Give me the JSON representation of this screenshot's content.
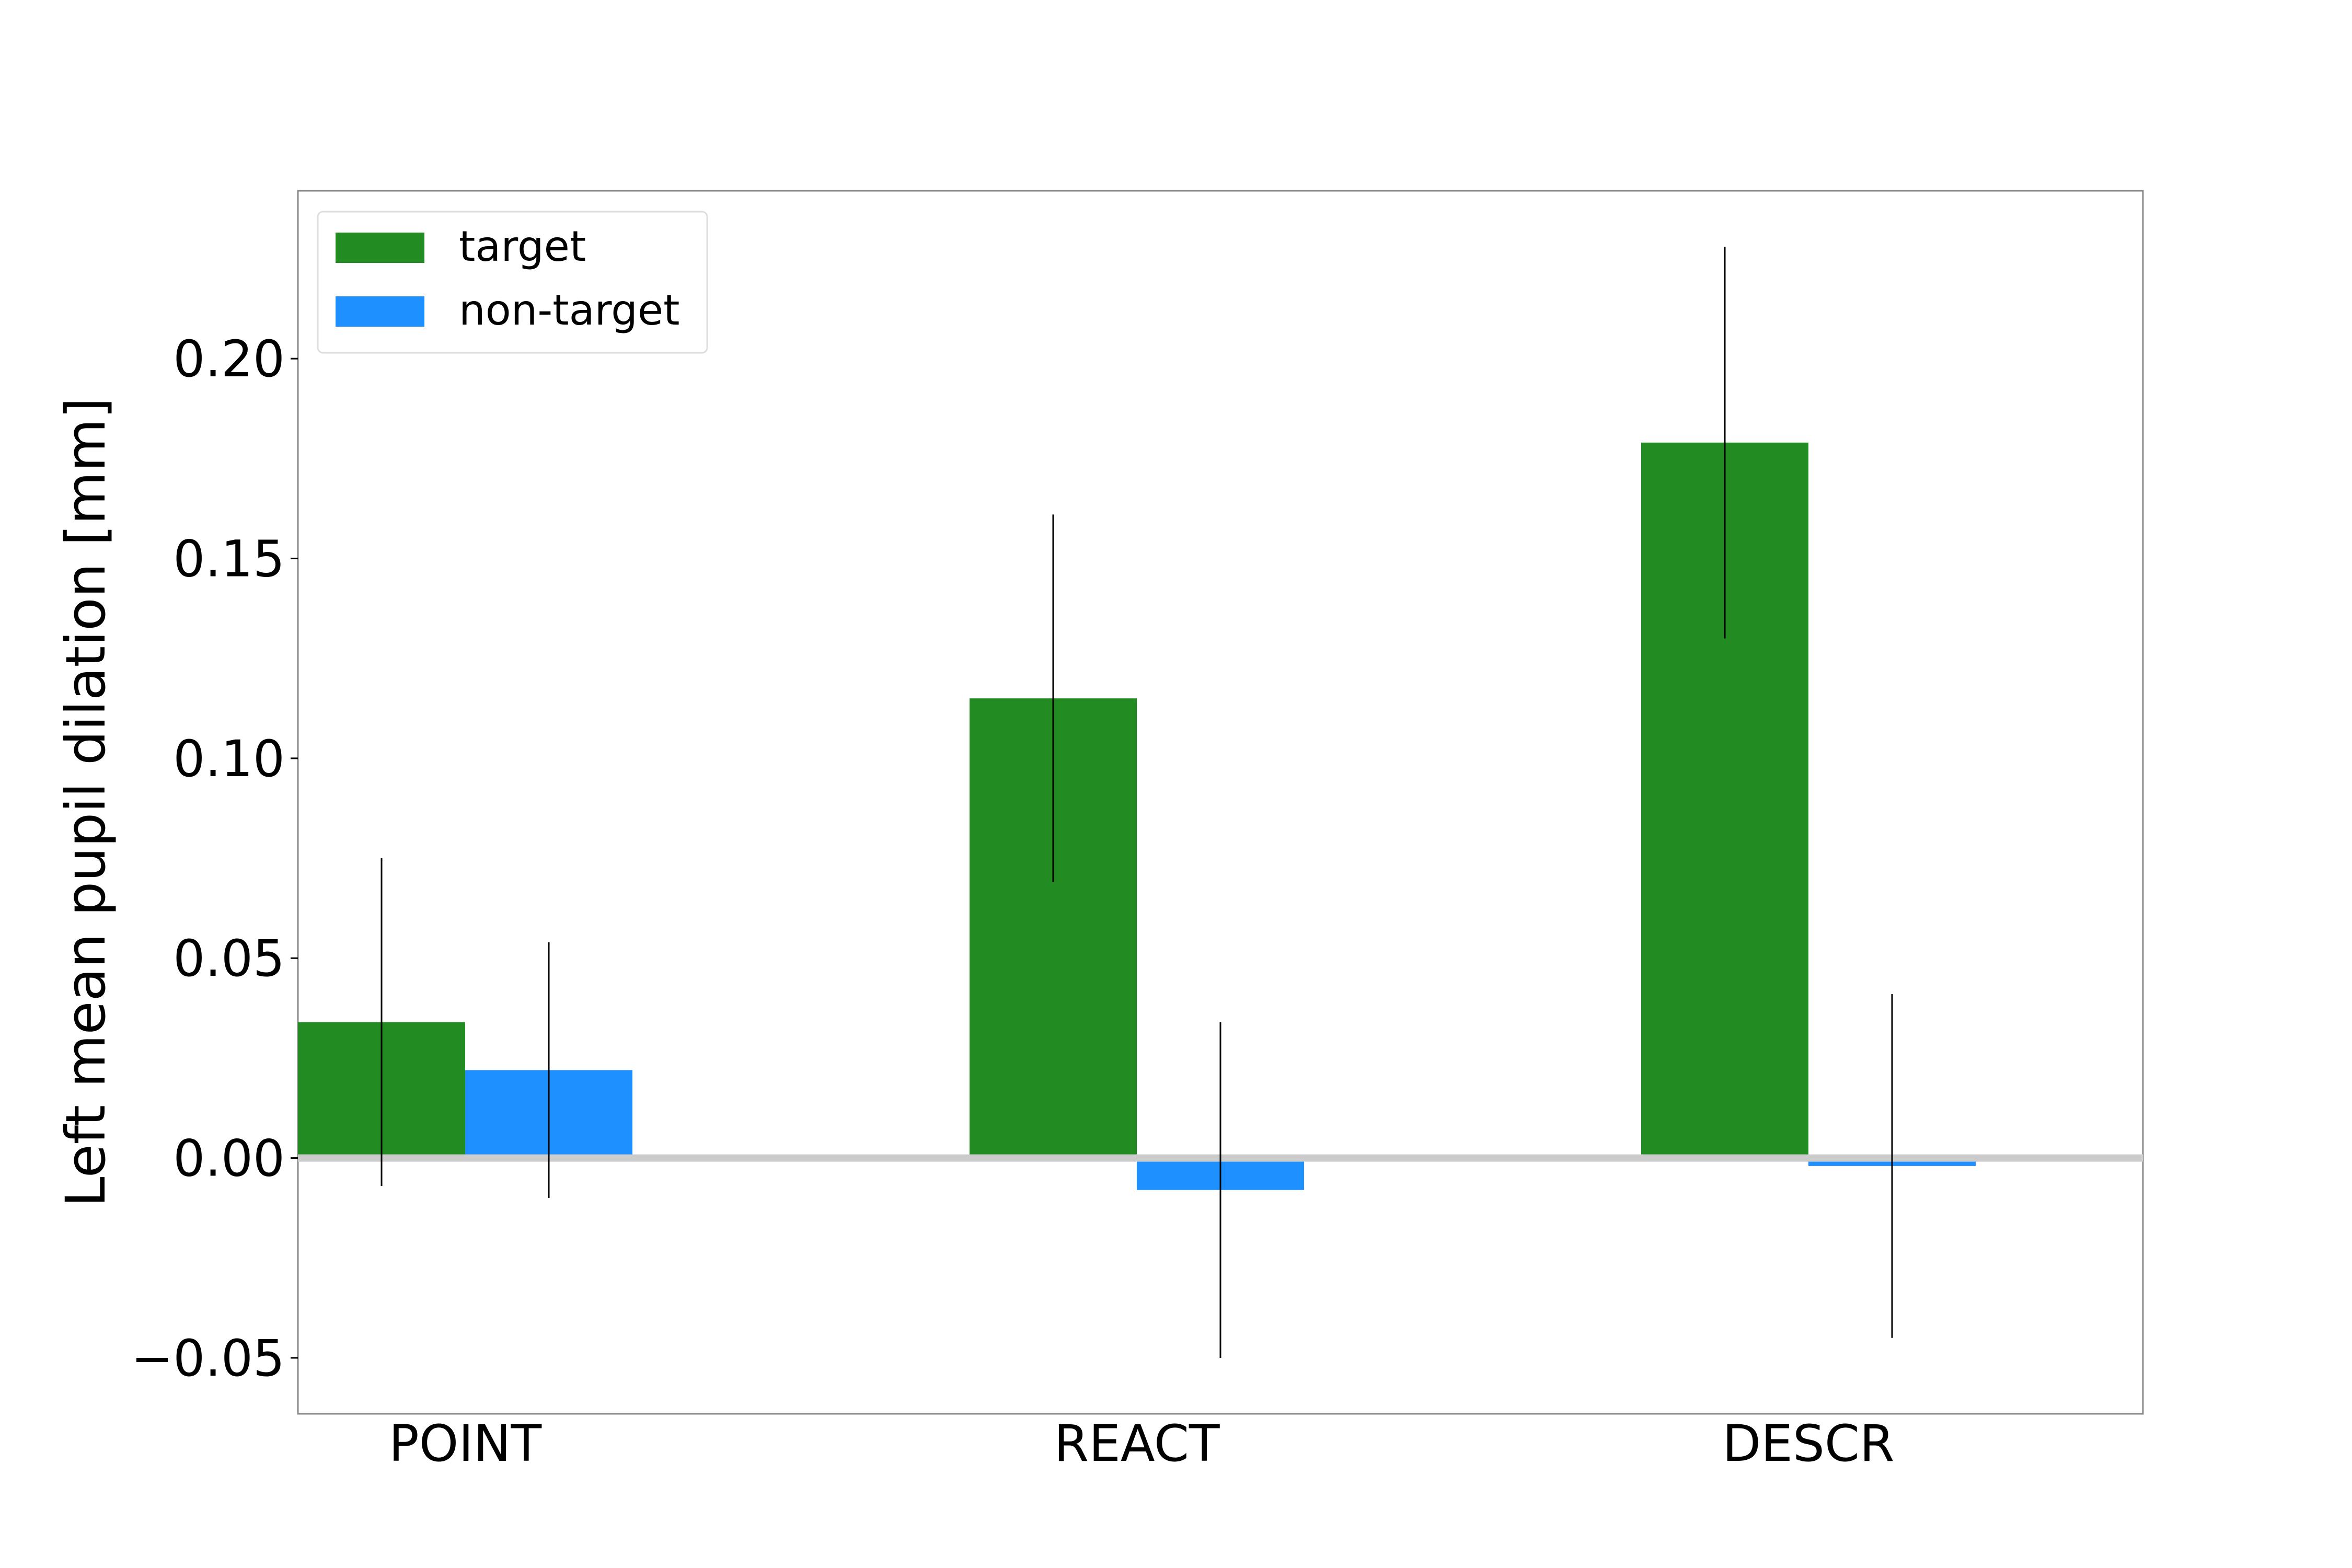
{
  "chart_data": {
    "type": "bar",
    "title": "",
    "xlabel": "",
    "ylabel": "Left mean pupil dilation [mm]",
    "categories": [
      "POINT",
      "REACT",
      "DESCR"
    ],
    "series": [
      {
        "name": "target",
        "color": "#228b22",
        "values": [
          0.034,
          0.115,
          0.179
        ],
        "error": [
          0.041,
          0.046,
          0.049
        ]
      },
      {
        "name": "non-target",
        "color": "#1e90ff",
        "values": [
          0.022,
          -0.008,
          -0.002
        ],
        "error": [
          0.032,
          0.042,
          0.043
        ]
      }
    ],
    "ylim": [
      -0.064,
      0.242
    ],
    "yticks": [
      -0.05,
      0.0,
      0.05,
      0.1,
      0.15,
      0.2
    ],
    "ytick_labels": [
      "−0.05",
      "0.00",
      "0.05",
      "0.10",
      "0.15",
      "0.20"
    ],
    "zero_line": true,
    "grid": false,
    "legend_position": "top-left",
    "colors": {
      "zero_line": "#cccccc",
      "axes_border": "#888888",
      "error_bar": "#000000"
    }
  }
}
